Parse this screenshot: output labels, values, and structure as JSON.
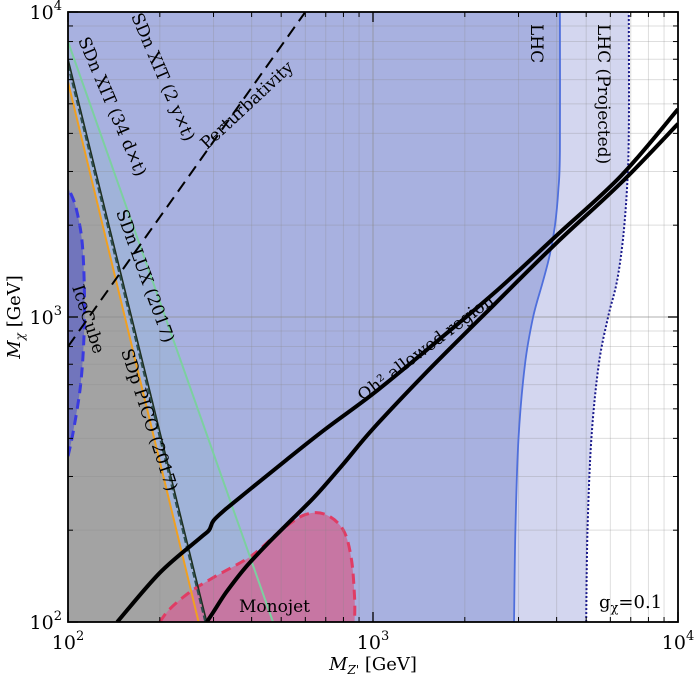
{
  "chart_data": {
    "type": "area",
    "xlabel": "M_Z' [GeV]",
    "xlabel_main": "M",
    "xlabel_sub": "Z'",
    "xlabel_unit": "[GeV]",
    "ylabel_main": "M",
    "ylabel_sub": "χ",
    "ylabel_unit": "[GeV]",
    "xscale": "log",
    "yscale": "log",
    "xlim": [
      100,
      10000
    ],
    "ylim": [
      100,
      10000
    ],
    "grid": true,
    "x_ticks": [
      {
        "base": "10",
        "exp": "2"
      },
      {
        "base": "10",
        "exp": "3"
      },
      {
        "base": "10",
        "exp": "4"
      }
    ],
    "y_ticks": [
      {
        "base": "10",
        "exp": "2"
      },
      {
        "base": "10",
        "exp": "3"
      },
      {
        "base": "10",
        "exp": "4"
      }
    ],
    "coupling_label": "g",
    "coupling_sub": "χ",
    "coupling_value": "=0.1",
    "colors": {
      "dd_band": "#9fb3d8",
      "lhc_fill": "#a8b1e0",
      "lhc_projected_fill": "#d3d6ef",
      "lhc_line": "#4f6fdc",
      "lhc_projected_line": "#1a1a8c",
      "gray_region": "#a3a3a3",
      "icecube_fill": "#6066c4",
      "icecube_line": "#3a3ae0",
      "monojet_fill": "#cc6c98",
      "monojet_line": "#e03c64",
      "pico_line": "#f0a020",
      "lux_line": "#2e4e4e",
      "xit2_line": "#7cd0a0",
      "relic_line": "#000000"
    },
    "regions": [
      {
        "name": "LHC",
        "boundary_x": [
          2900,
          2930,
          3000,
          3150,
          3350,
          3600,
          3800,
          3950,
          4050,
          4100,
          4100
        ],
        "boundary_y": [
          100,
          200,
          400,
          700,
          1000,
          1300,
          1600,
          2000,
          2600,
          3500,
          10000
        ]
      },
      {
        "name": "LHC (Projected)",
        "boundary_x": [
          5000,
          5050,
          5200,
          5500,
          5900,
          6300,
          6600,
          6800,
          6900,
          6900
        ],
        "boundary_y": [
          100,
          200,
          400,
          700,
          1000,
          1300,
          1800,
          2600,
          4000,
          10000
        ]
      },
      {
        "name": "IceCube",
        "x": [
          100,
          104,
          110,
          113,
          113,
          111,
          106,
          101,
          100
        ],
        "y": [
          350,
          420,
          600,
          900,
          1300,
          1800,
          2300,
          2600,
          2650
        ]
      },
      {
        "name": "Monojet",
        "x": [
          200,
          215,
          250,
          300,
          400,
          500,
          600,
          700,
          800,
          850,
          870,
          870
        ],
        "y": [
          100,
          110,
          125,
          140,
          165,
          200,
          225,
          225,
          200,
          160,
          120,
          100
        ]
      }
    ],
    "series": [
      {
        "name": "SDn XIT (2 y×t)",
        "x": [
          100,
          470
        ],
        "y": [
          8000,
          100
        ]
      },
      {
        "name": "SDn XIT (34 d×t)",
        "x": [
          100,
          285
        ],
        "y": [
          7000,
          100
        ]
      },
      {
        "name": "SDn LUX (2017)",
        "x": [
          100,
          282
        ],
        "y": [
          6700,
          100
        ]
      },
      {
        "name": "SDp PICO (2017)",
        "x": [
          100,
          268
        ],
        "y": [
          5900,
          100
        ]
      },
      {
        "name": "Perturbativity",
        "x": [
          100,
          600
        ],
        "y": [
          800,
          10000
        ]
      },
      {
        "name": "Ωh² allowed region",
        "upper_x": [
          145,
          200,
          270,
          290,
          300,
          330,
          400,
          520,
          700,
          1000,
          1500,
          2500,
          4000,
          6500,
          10000
        ],
        "upper_y": [
          100,
          145,
          188,
          200,
          215,
          235,
          275,
          340,
          430,
          560,
          780,
          1200,
          1850,
          2900,
          4800
        ],
        "lower_x": [
          285,
          300,
          330,
          380,
          450,
          550,
          650,
          800,
          1000,
          1500,
          2500,
          4000,
          6500,
          10000
        ],
        "lower_y": [
          100,
          108,
          125,
          150,
          180,
          220,
          260,
          330,
          430,
          660,
          1100,
          1750,
          2750,
          4300
        ]
      }
    ],
    "annotations": [
      {
        "text": "SDn XIT (2 y×t)"
      },
      {
        "text": "SDn XIT (34 d×t)"
      },
      {
        "text": "SDn LUX (2017)"
      },
      {
        "text": "SDp PICO (2017)"
      },
      {
        "text": "Perturbativity"
      },
      {
        "text": "IceCube"
      },
      {
        "text": "Monojet"
      },
      {
        "text": "LHC"
      },
      {
        "text": "LHC (Projected)"
      },
      {
        "text": "Ωh² allowed region"
      }
    ]
  }
}
